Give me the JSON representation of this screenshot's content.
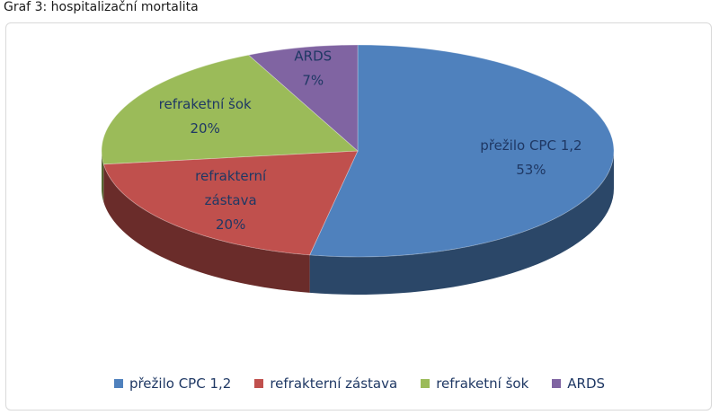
{
  "figure_title": "Graf 3: hospitalizační mortalita",
  "chart_data": {
    "type": "pie",
    "title": "",
    "categories": [
      "přežilo CPC 1,2",
      "refrakterní zástava",
      "refraketní šok",
      "ARDS"
    ],
    "values": [
      53,
      20,
      20,
      7
    ],
    "value_labels": [
      "53%",
      "20%",
      "20%",
      "7%"
    ],
    "slice_label_lines": [
      [
        "přežilo CPC 1,2",
        "53%"
      ],
      [
        "refrakterní",
        "zástava",
        "20%"
      ],
      [
        "refraketní šok",
        "20%"
      ],
      [
        "ARDS",
        "7%"
      ]
    ],
    "colors": [
      "#4f81bd",
      "#c0504d",
      "#9bbb59",
      "#8064a2"
    ],
    "legend_position": "bottom",
    "style": "3d-exploded-none"
  }
}
